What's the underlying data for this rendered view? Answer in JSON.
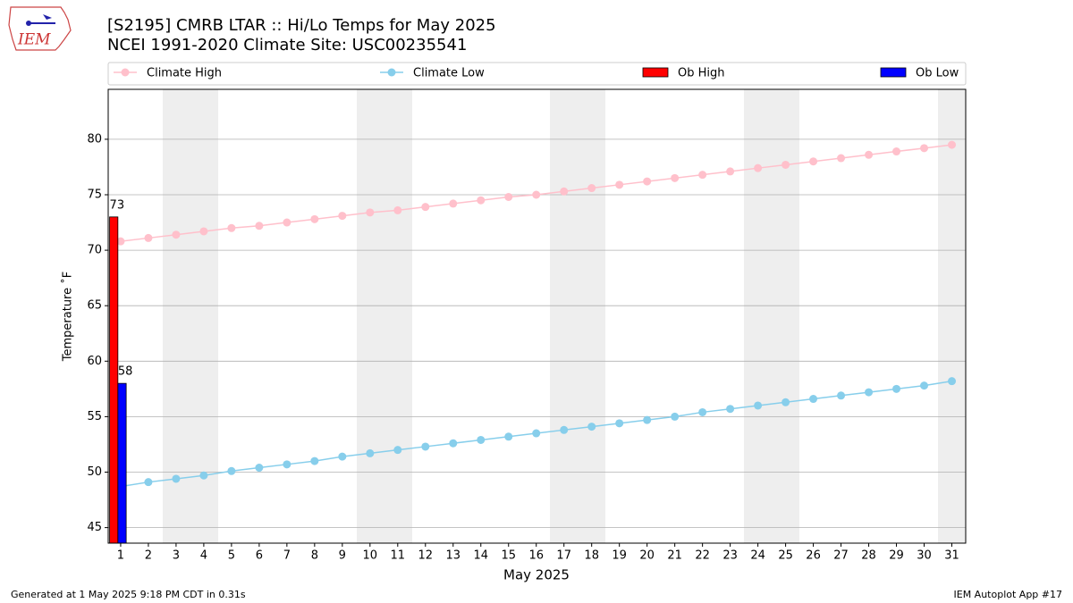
{
  "chart_data": {
    "type": "line",
    "title": "[S2195] CMRB LTAR :: Hi/Lo Temps for May 2025",
    "subtitle": "NCEI 1991-2020 Climate Site: USC00235541",
    "ylabel": "Temperature ˚F",
    "xlabel": "May 2025",
    "x": [
      1,
      2,
      3,
      4,
      5,
      6,
      7,
      8,
      9,
      10,
      11,
      12,
      13,
      14,
      15,
      16,
      17,
      18,
      19,
      20,
      21,
      22,
      23,
      24,
      25,
      26,
      27,
      28,
      29,
      30,
      31
    ],
    "xlim": [
      0.55,
      31.5
    ],
    "xticks": [
      1,
      2,
      3,
      4,
      5,
      6,
      7,
      8,
      9,
      10,
      11,
      12,
      13,
      14,
      15,
      16,
      17,
      18,
      19,
      20,
      21,
      22,
      23,
      24,
      25,
      26,
      27,
      28,
      29,
      30,
      31
    ],
    "ylim": [
      43.6,
      84.5
    ],
    "yticks": [
      45,
      50,
      55,
      60,
      65,
      70,
      75,
      80
    ],
    "grid": true,
    "series": [
      {
        "name": "Climate High",
        "type": "line",
        "color": "#ffc0cb",
        "values": [
          70.8,
          71.1,
          71.4,
          71.7,
          72.0,
          72.2,
          72.5,
          72.8,
          73.1,
          73.4,
          73.6,
          73.9,
          74.2,
          74.5,
          74.8,
          75.0,
          75.3,
          75.6,
          75.9,
          76.2,
          76.5,
          76.8,
          77.1,
          77.4,
          77.7,
          78.0,
          78.3,
          78.6,
          78.9,
          79.2,
          79.5
        ]
      },
      {
        "name": "Climate Low",
        "type": "line",
        "color": "#87ceeb",
        "values": [
          48.7,
          49.1,
          49.4,
          49.7,
          50.1,
          50.4,
          50.7,
          51.0,
          51.4,
          51.7,
          52.0,
          52.3,
          52.6,
          52.9,
          53.2,
          53.5,
          53.8,
          54.1,
          54.4,
          54.7,
          55.0,
          55.4,
          55.7,
          56.0,
          56.3,
          56.6,
          56.9,
          57.2,
          57.5,
          57.8,
          58.2
        ]
      },
      {
        "name": "Ob High",
        "type": "bar",
        "color": "#ff0000",
        "values": [
          73,
          null,
          null,
          null,
          null,
          null,
          null,
          null,
          null,
          null,
          null,
          null,
          null,
          null,
          null,
          null,
          null,
          null,
          null,
          null,
          null,
          null,
          null,
          null,
          null,
          null,
          null,
          null,
          null,
          null,
          null
        ]
      },
      {
        "name": "Ob Low",
        "type": "bar",
        "color": "#0000ff",
        "values": [
          58,
          null,
          null,
          null,
          null,
          null,
          null,
          null,
          null,
          null,
          null,
          null,
          null,
          null,
          null,
          null,
          null,
          null,
          null,
          null,
          null,
          null,
          null,
          null,
          null,
          null,
          null,
          null,
          null,
          null,
          null
        ]
      }
    ]
  },
  "logo_text": "IEM",
  "footer_left": "Generated at 1 May 2025 9:18 PM CDT in 0.31s",
  "footer_right": "IEM Autoplot App #17"
}
